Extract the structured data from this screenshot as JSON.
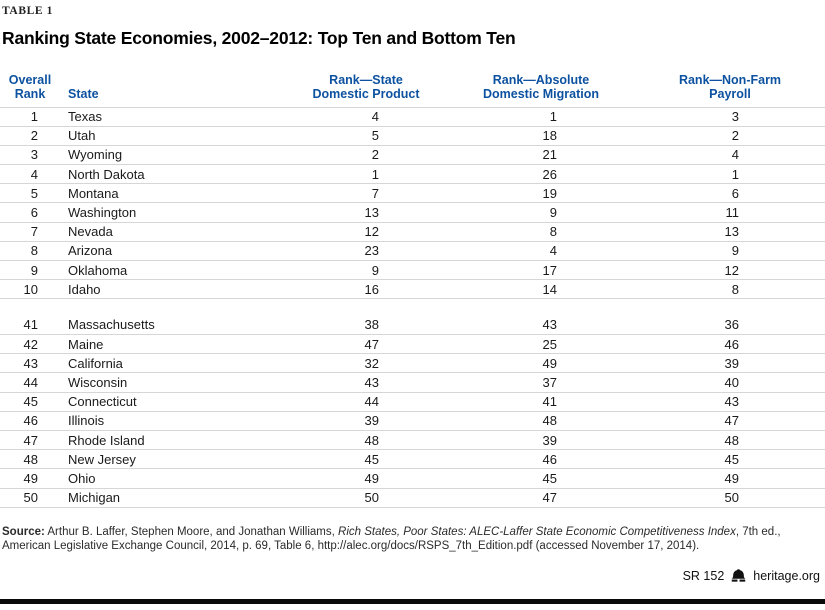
{
  "meta": {
    "table_label": "TABLE 1",
    "title": "Ranking State Economies, 2002–2012: Top Ten and Bottom Ten"
  },
  "columns": [
    {
      "id": "rank",
      "line1": "Overall",
      "line2": "Rank"
    },
    {
      "id": "state",
      "line1": "State",
      "line2": ""
    },
    {
      "id": "sdp",
      "line1": "Rank—State",
      "line2": "Domestic Product"
    },
    {
      "id": "migration",
      "line1": "Rank—Absolute",
      "line2": "Domestic Migration"
    },
    {
      "id": "payroll",
      "line1": "Rank—Non-Farm",
      "line2": "Payroll"
    }
  ],
  "top_ten": [
    {
      "rank": "1",
      "state": "Texas",
      "sdp": "4",
      "migration": "1",
      "payroll": "3"
    },
    {
      "rank": "2",
      "state": "Utah",
      "sdp": "5",
      "migration": "18",
      "payroll": "2"
    },
    {
      "rank": "3",
      "state": "Wyoming",
      "sdp": "2",
      "migration": "21",
      "payroll": "4"
    },
    {
      "rank": "4",
      "state": "North Dakota",
      "sdp": "1",
      "migration": "26",
      "payroll": "1"
    },
    {
      "rank": "5",
      "state": "Montana",
      "sdp": "7",
      "migration": "19",
      "payroll": "6"
    },
    {
      "rank": "6",
      "state": "Washington",
      "sdp": "13",
      "migration": "9",
      "payroll": "11"
    },
    {
      "rank": "7",
      "state": "Nevada",
      "sdp": "12",
      "migration": "8",
      "payroll": "13"
    },
    {
      "rank": "8",
      "state": "Arizona",
      "sdp": "23",
      "migration": "4",
      "payroll": "9"
    },
    {
      "rank": "9",
      "state": "Oklahoma",
      "sdp": "9",
      "migration": "17",
      "payroll": "12"
    },
    {
      "rank": "10",
      "state": "Idaho",
      "sdp": "16",
      "migration": "14",
      "payroll": "8"
    }
  ],
  "bottom_ten": [
    {
      "rank": "41",
      "state": "Massachusetts",
      "sdp": "38",
      "migration": "43",
      "payroll": "36"
    },
    {
      "rank": "42",
      "state": "Maine",
      "sdp": "47",
      "migration": "25",
      "payroll": "46"
    },
    {
      "rank": "43",
      "state": "California",
      "sdp": "32",
      "migration": "49",
      "payroll": "39"
    },
    {
      "rank": "44",
      "state": "Wisconsin",
      "sdp": "43",
      "migration": "37",
      "payroll": "40"
    },
    {
      "rank": "45",
      "state": "Connecticut",
      "sdp": "44",
      "migration": "41",
      "payroll": "43"
    },
    {
      "rank": "46",
      "state": "Illinois",
      "sdp": "39",
      "migration": "48",
      "payroll": "47"
    },
    {
      "rank": "47",
      "state": "Rhode Island",
      "sdp": "48",
      "migration": "39",
      "payroll": "48"
    },
    {
      "rank": "48",
      "state": "New Jersey",
      "sdp": "45",
      "migration": "46",
      "payroll": "45"
    },
    {
      "rank": "49",
      "state": "Ohio",
      "sdp": "49",
      "migration": "45",
      "payroll": "49"
    },
    {
      "rank": "50",
      "state": "Michigan",
      "sdp": "50",
      "migration": "47",
      "payroll": "50"
    }
  ],
  "source": {
    "label": "Source:",
    "pre_italic": " Arthur B. Laffer, Stephen Moore, and Jonathan Williams, ",
    "italic": "Rich States, Poor States: ALEC-Laffer State Economic Competitiveness Index",
    "post_italic": ", 7th ed., American Legislative Exchange Council, 2014, p. 69, Table 6, http://alec.org/docs/RSPS_7th_Edition.pdf (accessed November 17, 2014)."
  },
  "footer": {
    "report_id": "SR 152",
    "site": "heritage.org",
    "logo_icon": "heritage-bell-icon"
  },
  "colors": {
    "accent_blue": "#0d52a0",
    "row_line": "#d6d6d6",
    "footer_bar": "#0a0a0a"
  }
}
